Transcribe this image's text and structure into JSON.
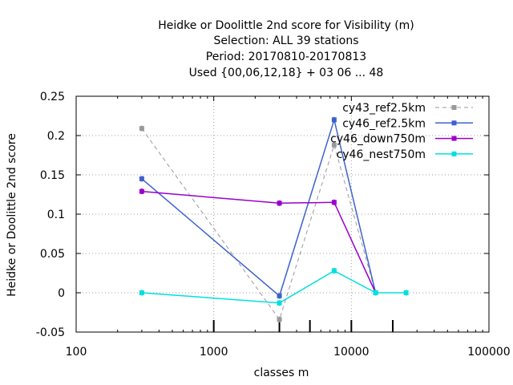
{
  "chart_data": {
    "type": "line",
    "title_lines": [
      "Heidke or Doolittle 2nd score  for Visibility (m)",
      "Selection: ALL      39 stations",
      "Period: 20170810-20170813",
      "Used {00,06,12,18} + 03 06 ... 48"
    ],
    "xlabel": "classes m",
    "ylabel": "Heidke or Doolittle 2nd score",
    "x_scale": "log",
    "xlim": [
      100,
      100000
    ],
    "ylim": [
      -0.05,
      0.25
    ],
    "x_ticks": [
      100,
      1000,
      10000,
      100000
    ],
    "x_tick_labels": [
      "100",
      "1000",
      "10000",
      "100000"
    ],
    "y_ticks": [
      -0.05,
      0,
      0.05,
      0.1,
      0.15,
      0.2,
      0.25
    ],
    "y_tick_labels": [
      "-0.05",
      "0",
      "0.05",
      "0.1",
      "0.15",
      "0.2",
      "0.25"
    ],
    "class_markers_x": [
      1000,
      3000,
      5000,
      10000,
      20000
    ],
    "grid": true,
    "legend_position": "top-right",
    "series": [
      {
        "name": "cy43_ref2.5km",
        "color": "#999999",
        "dashed": true,
        "x": [
          300,
          3000,
          7500,
          15000
        ],
        "y": [
          0.209,
          -0.034,
          0.188,
          0.0
        ]
      },
      {
        "name": "cy46_ref2.5km",
        "color": "#3d62cc",
        "dashed": false,
        "x": [
          300,
          3000,
          7500,
          15000
        ],
        "y": [
          0.145,
          -0.004,
          0.22,
          0.0
        ]
      },
      {
        "name": "cy46_down750m",
        "color": "#9900cc",
        "dashed": false,
        "x": [
          300,
          3000,
          7500,
          15000
        ],
        "y": [
          0.129,
          0.114,
          0.115,
          0.0
        ]
      },
      {
        "name": "cy46_nest750m",
        "color": "#00e0e0",
        "dashed": false,
        "x": [
          300,
          3000,
          7500,
          15000,
          25000
        ],
        "y": [
          0.0,
          -0.013,
          0.028,
          0.0,
          0.0
        ]
      }
    ]
  }
}
